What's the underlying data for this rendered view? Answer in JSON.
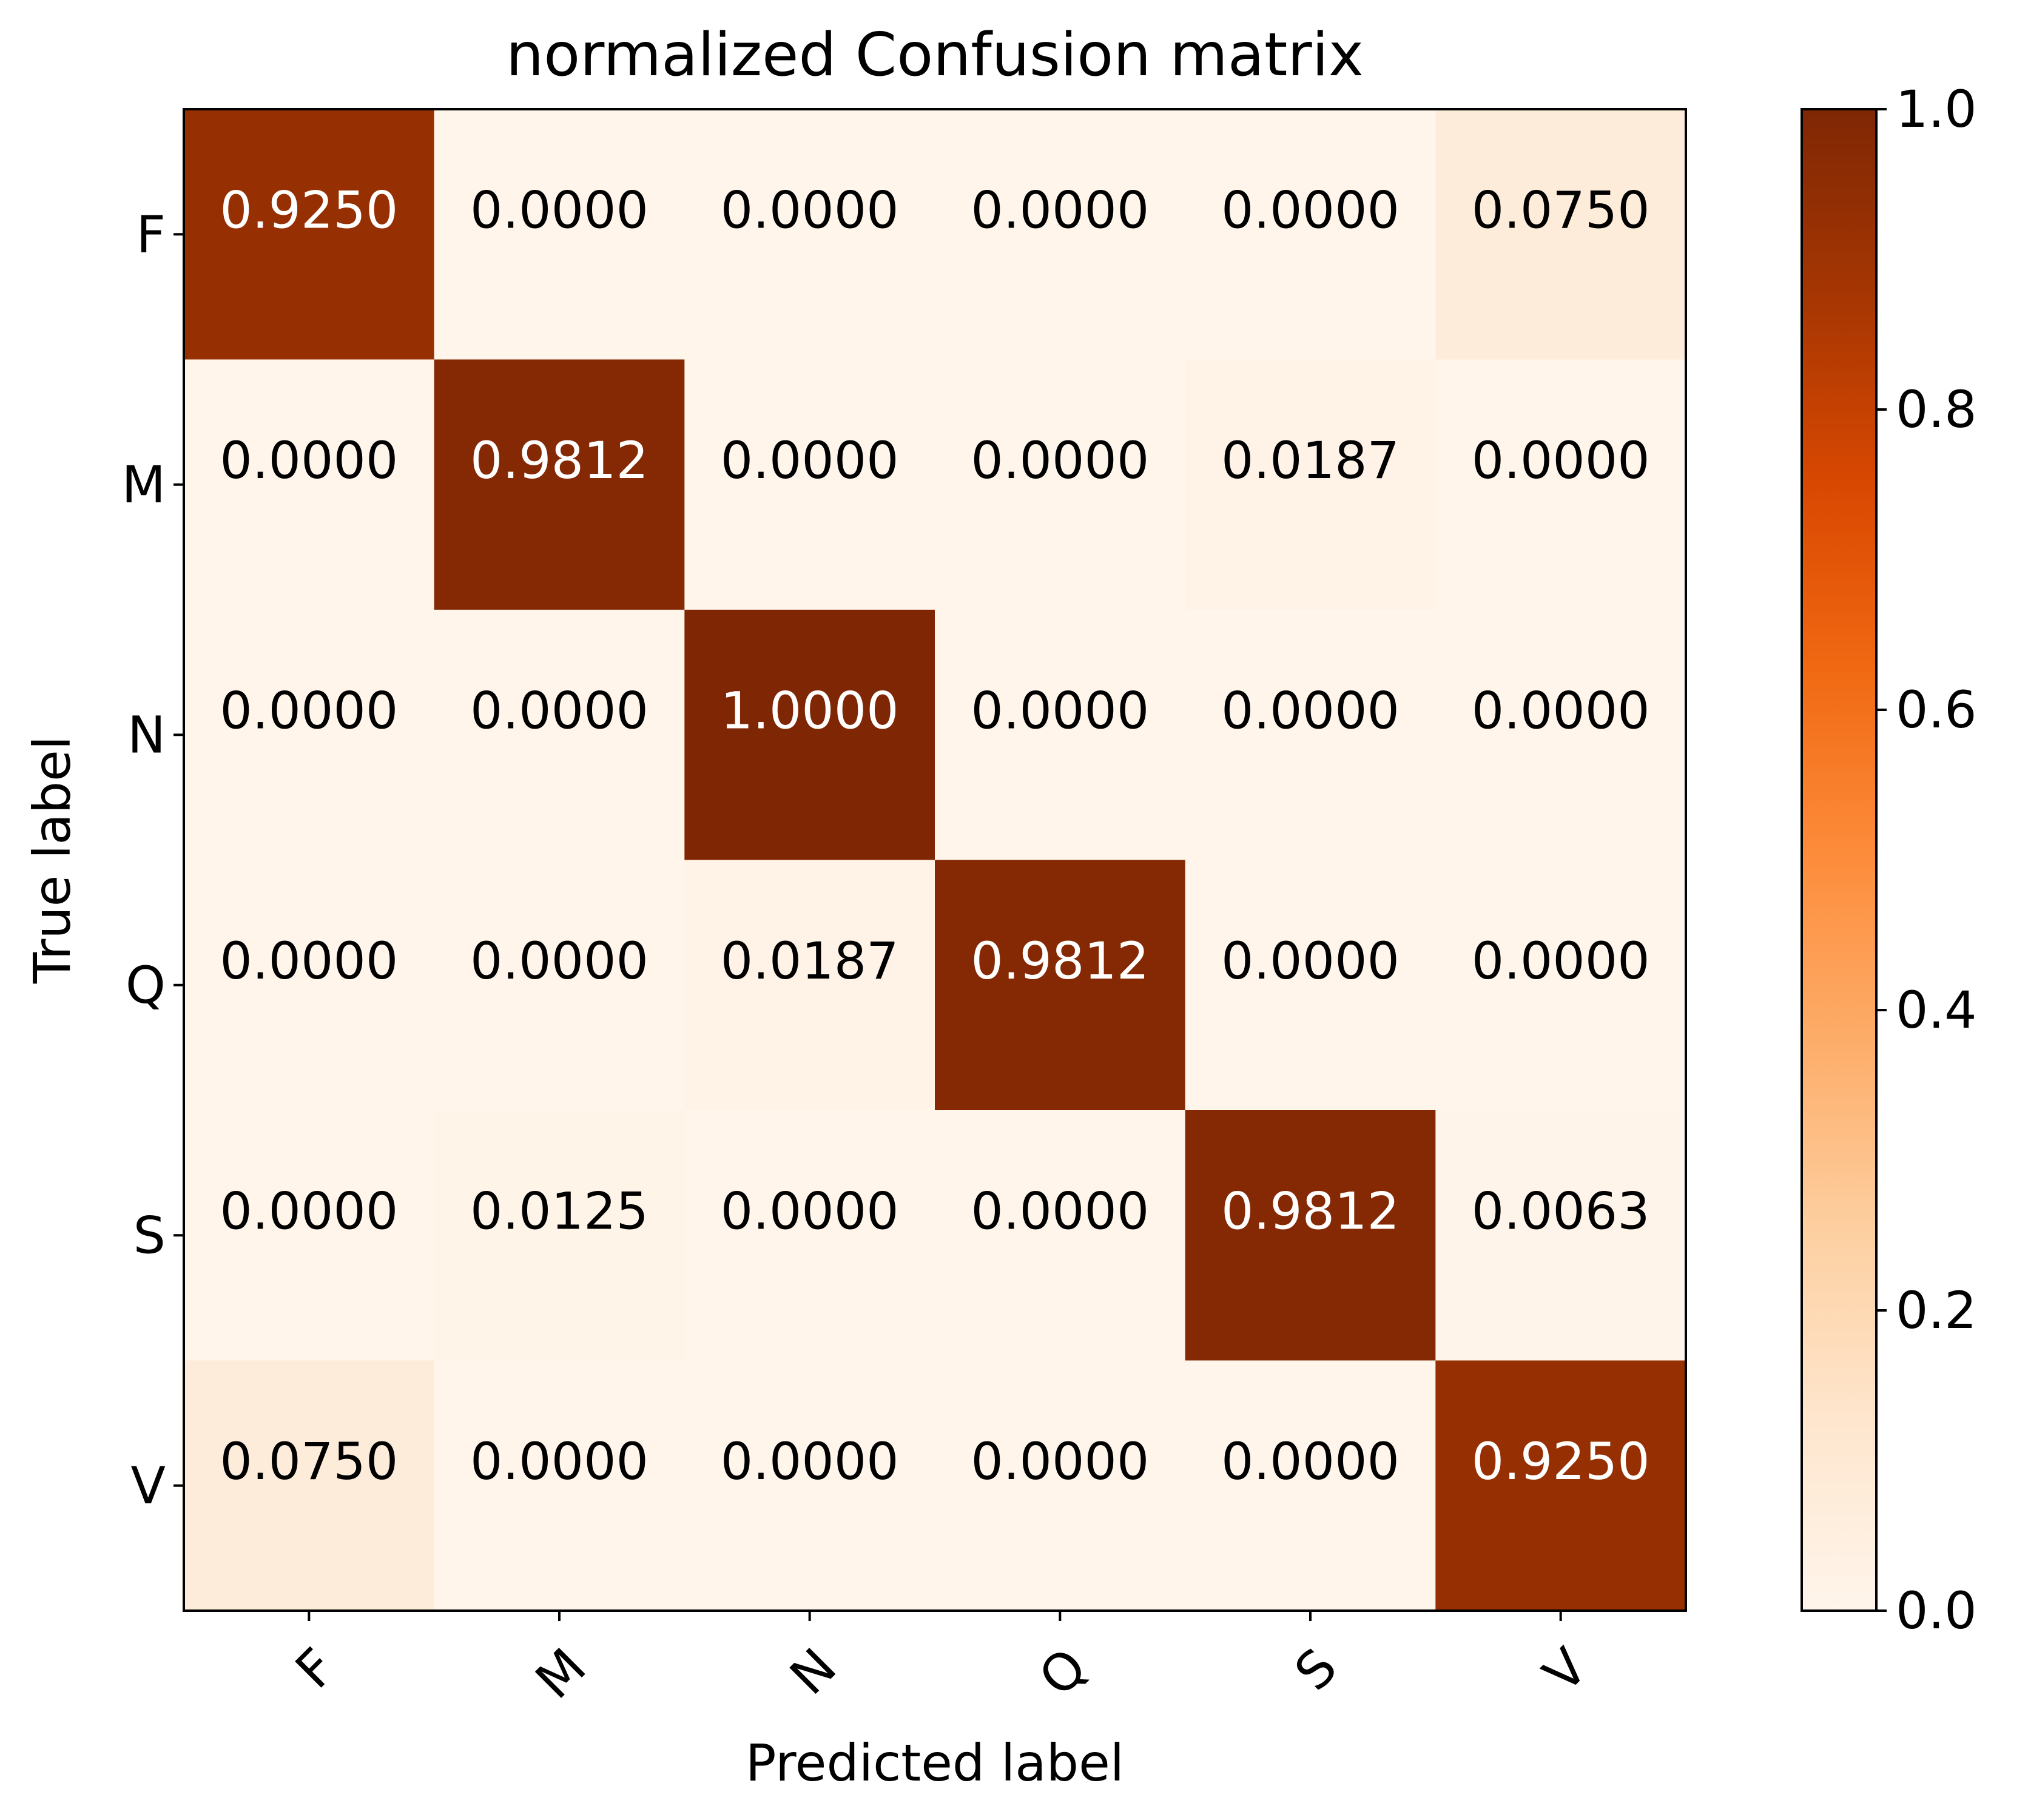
{
  "chart_data": {
    "type": "heatmap",
    "title": "normalized Confusion matrix",
    "xlabel": "Predicted label",
    "ylabel": "True label",
    "x_categories": [
      "F",
      "M",
      "N",
      "Q",
      "S",
      "V"
    ],
    "y_categories": [
      "F",
      "M",
      "N",
      "Q",
      "S",
      "V"
    ],
    "values": [
      [
        0.925,
        0.0,
        0.0,
        0.0,
        0.0,
        0.075
      ],
      [
        0.0,
        0.9812,
        0.0,
        0.0,
        0.0187,
        0.0
      ],
      [
        0.0,
        0.0,
        1.0,
        0.0,
        0.0,
        0.0
      ],
      [
        0.0,
        0.0,
        0.0187,
        0.9812,
        0.0,
        0.0
      ],
      [
        0.0,
        0.0125,
        0.0,
        0.0,
        0.9812,
        0.0063
      ],
      [
        0.075,
        0.0,
        0.0,
        0.0,
        0.0,
        0.925
      ]
    ],
    "value_labels": [
      [
        "0.9250",
        "0.0000",
        "0.0000",
        "0.0000",
        "0.0000",
        "0.0750"
      ],
      [
        "0.0000",
        "0.9812",
        "0.0000",
        "0.0000",
        "0.0187",
        "0.0000"
      ],
      [
        "0.0000",
        "0.0000",
        "1.0000",
        "0.0000",
        "0.0000",
        "0.0000"
      ],
      [
        "0.0000",
        "0.0000",
        "0.0187",
        "0.9812",
        "0.0000",
        "0.0000"
      ],
      [
        "0.0000",
        "0.0125",
        "0.0000",
        "0.0000",
        "0.9812",
        "0.0063"
      ],
      [
        "0.0750",
        "0.0000",
        "0.0000",
        "0.0000",
        "0.0000",
        "0.9250"
      ]
    ],
    "colormap": "Oranges",
    "colormap_stops": [
      "#fff5eb",
      "#fee6ce",
      "#fdd0a2",
      "#fdae6b",
      "#fd8d3c",
      "#f16913",
      "#d94801",
      "#a63603",
      "#7f2704"
    ],
    "text_color_dark": "#000000",
    "text_color_light": "#ffffff",
    "colorbar": {
      "range": [
        0.0,
        1.0
      ],
      "ticks": [
        0.0,
        0.2,
        0.4,
        0.6,
        0.8,
        1.0
      ],
      "tick_labels": [
        "0.0",
        "0.2",
        "0.4",
        "0.6",
        "0.8",
        "1.0"
      ]
    },
    "grid": false
  }
}
